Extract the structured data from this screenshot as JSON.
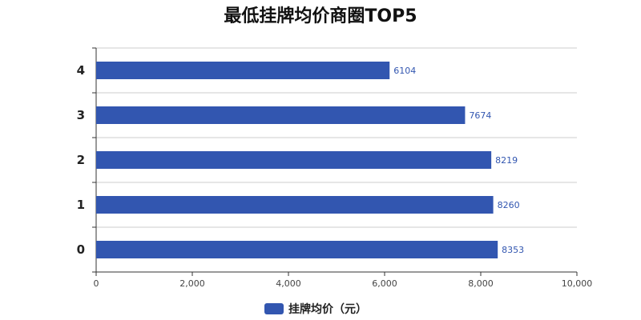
{
  "chart_data": {
    "type": "bar",
    "orientation": "horizontal",
    "title": "最低挂牌均价商圈TOP5",
    "categories": [
      "0",
      "1",
      "2",
      "3",
      "4"
    ],
    "series": [
      {
        "name": "挂牌均价（元）",
        "values": [
          8353,
          8260,
          8219,
          7674,
          6104
        ]
      }
    ],
    "xlim": [
      0,
      10000
    ],
    "x_ticks": [
      "0",
      "2,000",
      "4,000",
      "6,000",
      "8,000",
      "10,000"
    ],
    "grid": "horizontal",
    "legend_position": "bottom-center",
    "bar_color": "#3256b0",
    "label_color": "#3256b0"
  }
}
